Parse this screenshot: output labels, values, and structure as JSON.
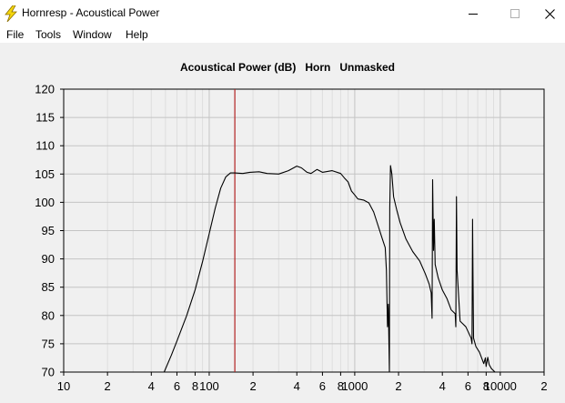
{
  "window": {
    "title": "Hornresp - Acoustical Power",
    "icon": "lightning-bolt-icon",
    "buttons": [
      "minimize-icon",
      "maximize-icon",
      "close-icon"
    ]
  },
  "menu": {
    "items": [
      {
        "label": "File"
      },
      {
        "label": "Tools"
      },
      {
        "label": "Window"
      },
      {
        "label": "Help"
      }
    ]
  },
  "chart_data": {
    "type": "line",
    "title": "Acoustical Power (dB)   Horn   Unmasked",
    "xscale": "log",
    "xlim": [
      10,
      20000
    ],
    "ylim": [
      70,
      120
    ],
    "yticks": [
      70,
      75,
      80,
      85,
      90,
      95,
      100,
      105,
      110,
      115,
      120
    ],
    "xtick_labels": [
      {
        "x": 10,
        "label": "10"
      },
      {
        "x": 20,
        "label": "2"
      },
      {
        "x": 40,
        "label": "4"
      },
      {
        "x": 60,
        "label": "6"
      },
      {
        "x": 80,
        "label": "8"
      },
      {
        "x": 100,
        "label": "100"
      },
      {
        "x": 200,
        "label": "2"
      },
      {
        "x": 400,
        "label": "4"
      },
      {
        "x": 600,
        "label": "6"
      },
      {
        "x": 800,
        "label": "8"
      },
      {
        "x": 1000,
        "label": "1000"
      },
      {
        "x": 2000,
        "label": "2"
      },
      {
        "x": 4000,
        "label": "4"
      },
      {
        "x": 6000,
        "label": "6"
      },
      {
        "x": 8000,
        "label": "8"
      },
      {
        "x": 10000,
        "label": "10000"
      },
      {
        "x": 20000,
        "label": "2"
      }
    ],
    "grid": true,
    "marker_line": {
      "x": 150,
      "color": "#b22222"
    },
    "line_color": "#000000",
    "series": [
      {
        "values": [
          [
            49,
            70
          ],
          [
            55,
            73
          ],
          [
            60,
            75.5
          ],
          [
            70,
            80
          ],
          [
            80,
            84.5
          ],
          [
            90,
            89.5
          ],
          [
            100,
            94.5
          ],
          [
            110,
            99
          ],
          [
            120,
            102.5
          ],
          [
            130,
            104.5
          ],
          [
            140,
            105.2
          ],
          [
            150,
            105.2
          ],
          [
            170,
            105.1
          ],
          [
            190,
            105.3
          ],
          [
            220,
            105.4
          ],
          [
            250,
            105.1
          ],
          [
            300,
            105
          ],
          [
            350,
            105.6
          ],
          [
            400,
            106.4
          ],
          [
            430,
            106.1
          ],
          [
            470,
            105.3
          ],
          [
            500,
            105.1
          ],
          [
            550,
            105.8
          ],
          [
            600,
            105.3
          ],
          [
            700,
            105.6
          ],
          [
            800,
            105.1
          ],
          [
            850,
            104.3
          ],
          [
            900,
            103.6
          ],
          [
            950,
            102
          ],
          [
            1000,
            101.3
          ],
          [
            1050,
            100.6
          ],
          [
            1150,
            100.4
          ],
          [
            1250,
            99.9
          ],
          [
            1350,
            98.3
          ],
          [
            1450,
            95.8
          ],
          [
            1550,
            93.5
          ],
          [
            1620,
            92
          ],
          [
            1650,
            88
          ],
          [
            1680,
            78
          ],
          [
            1700,
            82
          ],
          [
            1730,
            70
          ],
          [
            1740,
            99
          ],
          [
            1760,
            106.5
          ],
          [
            1800,
            105
          ],
          [
            1850,
            101
          ],
          [
            1950,
            98.5
          ],
          [
            2050,
            96.4
          ],
          [
            2250,
            93.5
          ],
          [
            2500,
            91.3
          ],
          [
            2800,
            89.6
          ],
          [
            3050,
            87.4
          ],
          [
            3250,
            85.5
          ],
          [
            3350,
            84
          ],
          [
            3400,
            79.5
          ],
          [
            3430,
            104
          ],
          [
            3480,
            91.5
          ],
          [
            3520,
            97
          ],
          [
            3570,
            89
          ],
          [
            3750,
            86.6
          ],
          [
            4000,
            84.5
          ],
          [
            4300,
            83
          ],
          [
            4600,
            81
          ],
          [
            4900,
            80.3
          ],
          [
            4950,
            78
          ],
          [
            5000,
            101
          ],
          [
            5050,
            88
          ],
          [
            5300,
            79
          ],
          [
            5800,
            78
          ],
          [
            6300,
            76
          ],
          [
            6400,
            75
          ],
          [
            6450,
            97
          ],
          [
            6500,
            86.5
          ],
          [
            6550,
            76
          ],
          [
            6800,
            74.5
          ],
          [
            7200,
            73.5
          ],
          [
            7700,
            71.5
          ],
          [
            7900,
            72.5
          ],
          [
            8000,
            71
          ],
          [
            8200,
            72.6
          ],
          [
            8400,
            71.3
          ],
          [
            8700,
            70.6
          ],
          [
            9200,
            70
          ]
        ]
      }
    ]
  }
}
